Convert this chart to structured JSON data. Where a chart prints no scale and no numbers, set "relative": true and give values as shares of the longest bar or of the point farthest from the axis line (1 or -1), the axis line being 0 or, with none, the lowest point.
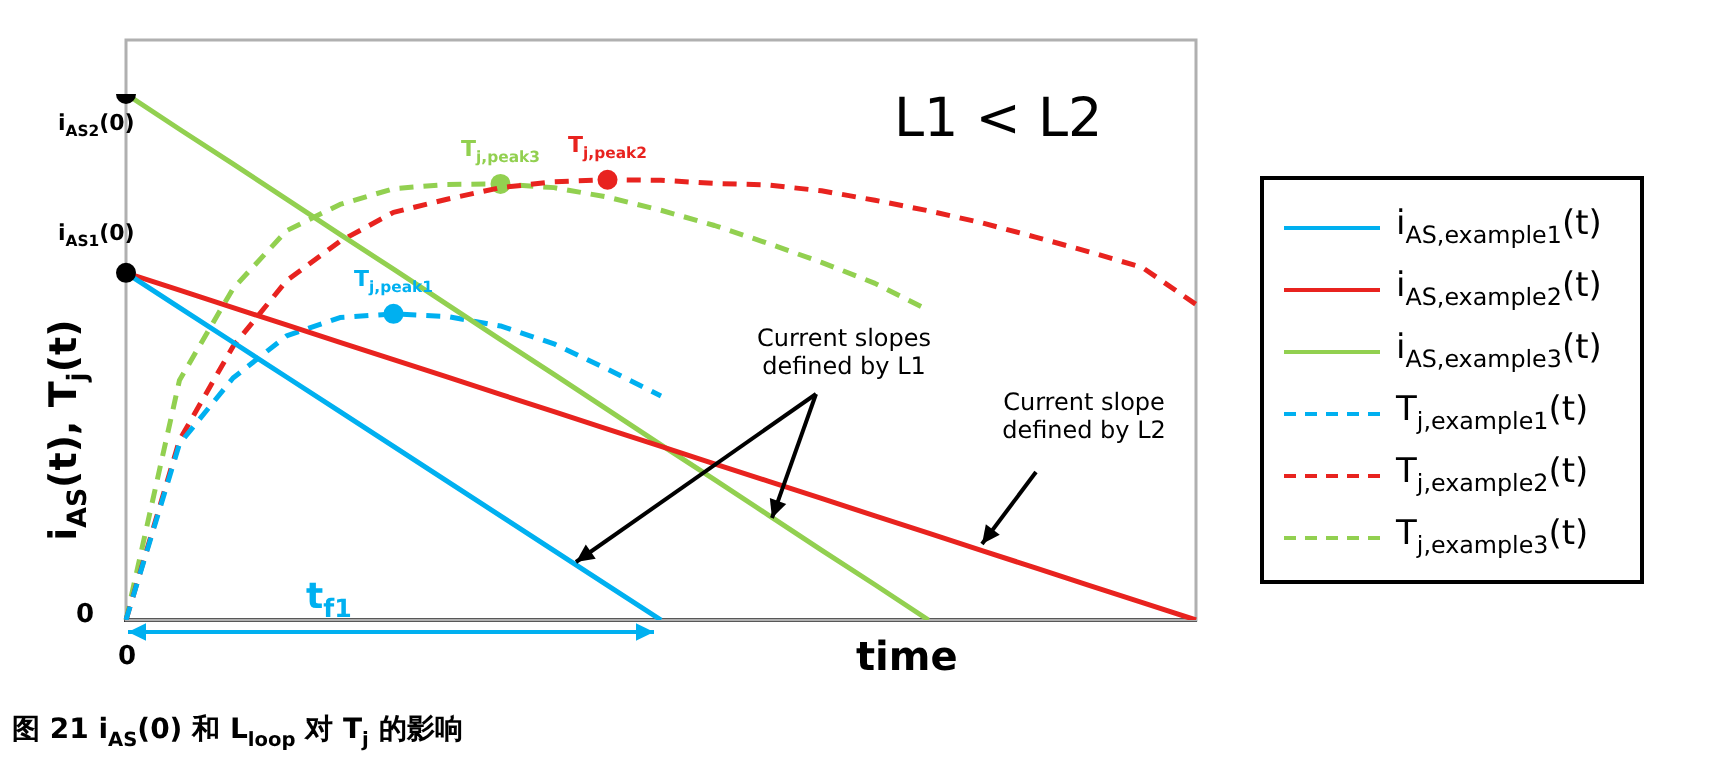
{
  "chart_data": {
    "type": "line",
    "relative": true,
    "xlabel": "time",
    "ylabel": "i$_{AS}$(t), T$_{j}$(t)",
    "legend": "right",
    "categories": [
      null,
      null,
      null,
      null,
      null,
      null,
      null,
      null,
      null,
      null,
      null,
      null,
      null,
      null,
      null,
      null,
      null,
      null,
      null,
      null,
      null
    ],
    "series": [
      {
        "name": "i$_{AS,example1}$(t)",
        "color": "#00b0f0",
        "line_style": "solid",
        "values": [
          0.66,
          0.594,
          0.528,
          0.462,
          0.396,
          0.33,
          0.264,
          0.198,
          0.132,
          0.066,
          0,
          null,
          null,
          null,
          null,
          null,
          null,
          null,
          null,
          null,
          null
        ]
      },
      {
        "name": "i$_{AS,example2}$(t)",
        "color": "#e8231f",
        "line_style": "solid",
        "values": [
          0.66,
          0.627,
          0.594,
          0.561,
          0.528,
          0.495,
          0.462,
          0.429,
          0.396,
          0.363,
          0.33,
          0.297,
          0.264,
          0.231,
          0.198,
          0.165,
          0.132,
          0.099,
          0.066,
          0.033,
          0
        ]
      },
      {
        "name": "i$_{AS,example3}$(t)",
        "color": "#92d050",
        "line_style": "solid",
        "values": [
          1,
          0.933,
          0.867,
          0.8,
          0.733,
          0.667,
          0.6,
          0.533,
          0.467,
          0.4,
          0.333,
          0.267,
          0.2,
          0.133,
          0.067,
          0,
          null,
          null,
          null,
          null,
          null
        ]
      },
      {
        "name": "T$_{j,example1}$(t)",
        "color": "#00b0f0",
        "line_style": "dashed",
        "values": [
          0,
          0.335,
          0.46,
          0.54,
          0.575,
          0.582,
          0.577,
          0.559,
          0.525,
          0.477,
          0.426,
          null,
          null,
          null,
          null,
          null,
          null,
          null,
          null,
          null,
          null
        ]
      },
      {
        "name": "T$_{j,example2}$(t)",
        "color": "#e8231f",
        "line_style": "dashed",
        "values": [
          0,
          0.342,
          0.52,
          0.645,
          0.72,
          0.775,
          0.8,
          0.822,
          0.833,
          0.837,
          0.836,
          0.83,
          0.827,
          0.816,
          0.798,
          0.778,
          0.755,
          0.728,
          0.7,
          0.67,
          0.6
        ]
      },
      {
        "name": "T$_{j,example3}$(t)",
        "color": "#92d050",
        "line_style": "dashed",
        "values": [
          0,
          0.456,
          0.63,
          0.74,
          0.79,
          0.82,
          0.828,
          0.829,
          0.822,
          0.804,
          0.779,
          0.75,
          0.716,
          0.68,
          0.64,
          0.589,
          null,
          null,
          null,
          null,
          null
        ]
      }
    ],
    "annotations": [
      "i$_{AS2}$(0)",
      "i$_{AS1}$(0)",
      "T$_{j,peak1}$",
      "T$_{j,peak2}$",
      "T$_{j,peak3}$",
      "L1 < L2",
      "Current slopes defined by L1",
      "Current slope defined by L2",
      "t$_{f1}$",
      "0",
      "0",
      "图 21 i$_{AS}$(0) 和 L$_{loop}$ 对 T$_{j}$ 的影响"
    ]
  }
}
